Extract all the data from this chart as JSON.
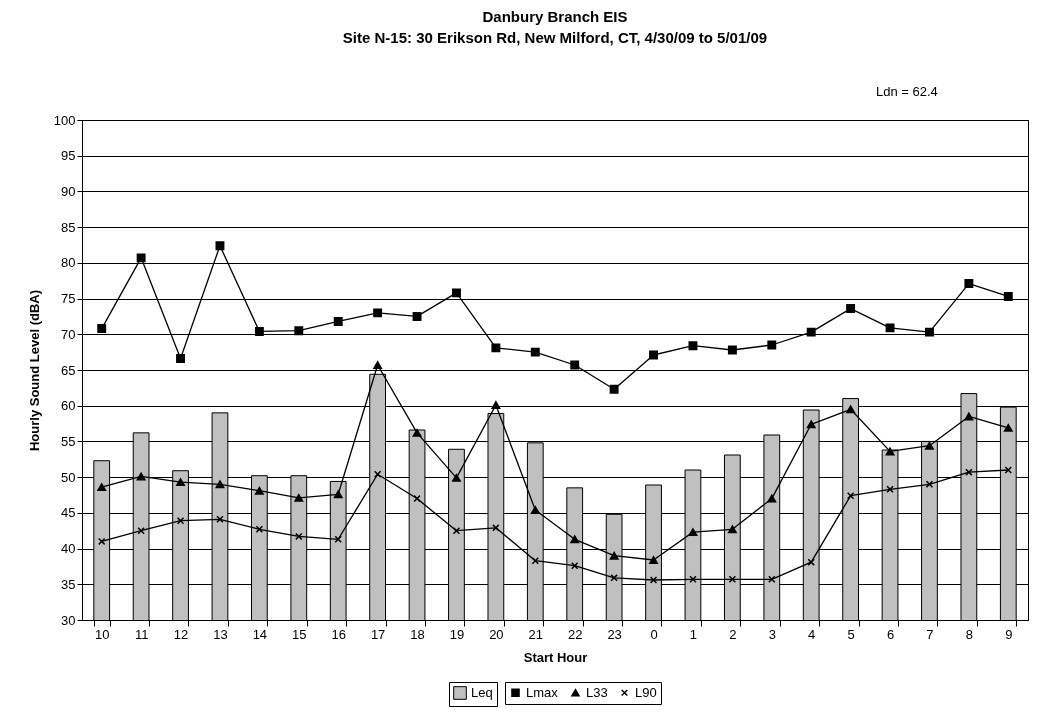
{
  "chart_data": {
    "type": "bar",
    "title": "Danbury Branch EIS",
    "subtitle": "Site N-15: 30 Erikson Rd,  New Milford, CT, 4/30/09 to 5/01/09",
    "xlabel": "Start Hour",
    "ylabel": "Hourly Sound Level (dBA)",
    "categories": [
      "10",
      "11",
      "12",
      "13",
      "14",
      "15",
      "16",
      "17",
      "18",
      "19",
      "20",
      "21",
      "22",
      "23",
      "0",
      "1",
      "2",
      "3",
      "4",
      "5",
      "6",
      "7",
      "8",
      "9"
    ],
    "series": [
      {
        "name": "Leq",
        "color": "#c0c0c0",
        "values": [
          52.3,
          56.2,
          50.9,
          59.0,
          50.2,
          50.2,
          49.4,
          64.4,
          56.6,
          53.9,
          58.9,
          54.8,
          48.5,
          44.8,
          48.9,
          51.0,
          53.1,
          55.9,
          59.4,
          61.0,
          53.8,
          55.0,
          61.7,
          59.8
        ]
      },
      {
        "name": "Lmax",
        "type": "line",
        "marker": "square",
        "color": "#000000",
        "values": [
          70.8,
          80.7,
          66.6,
          82.4,
          70.4,
          70.5,
          71.8,
          73.0,
          72.5,
          75.8,
          68.1,
          67.5,
          65.7,
          62.3,
          67.1,
          68.4,
          67.8,
          68.5,
          70.3,
          73.6,
          70.9,
          70.3,
          77.1,
          75.3
        ]
      },
      {
        "name": "L33",
        "type": "line",
        "marker": "triangle",
        "color": "#000000",
        "values": [
          48.6,
          50.1,
          49.3,
          49.0,
          48.1,
          47.1,
          47.6,
          65.7,
          56.2,
          49.9,
          60.1,
          45.4,
          41.3,
          39.0,
          38.4,
          42.3,
          42.7,
          47.0,
          57.4,
          59.5,
          53.6,
          54.4,
          58.5,
          56.9
        ]
      },
      {
        "name": "L90",
        "type": "line",
        "marker": "cross",
        "color": "#000000",
        "values": [
          41.0,
          42.5,
          43.9,
          44.1,
          42.7,
          41.7,
          41.3,
          50.4,
          47.0,
          42.5,
          42.9,
          38.3,
          37.6,
          35.9,
          35.6,
          35.7,
          35.7,
          35.7,
          38.1,
          47.4,
          48.3,
          49.0,
          50.7,
          51.0
        ]
      }
    ],
    "ylim": [
      30,
      100
    ],
    "yticks": [
      30,
      35,
      40,
      45,
      50,
      55,
      60,
      65,
      70,
      75,
      80,
      85,
      90,
      95,
      100
    ],
    "grid": "y",
    "legend": "bottom",
    "annotations": [
      "Ldn = 62.4"
    ]
  }
}
